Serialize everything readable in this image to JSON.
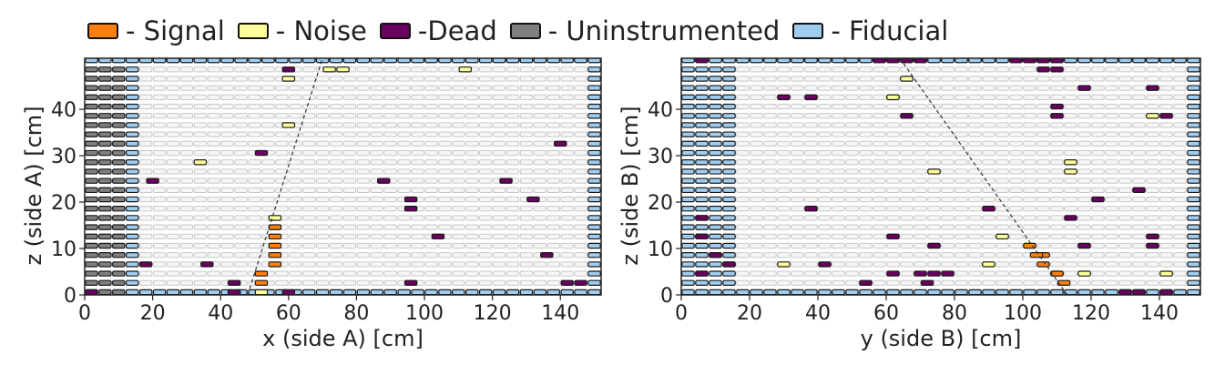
{
  "colors": {
    "signal": "#ff7f0e",
    "noise": "#ffff99",
    "dead": "#6a0060",
    "uninstrumented": "#808080",
    "fiducial": "#9fcdf0",
    "empty": "#f5f5f5"
  },
  "legend": [
    {
      "key": "signal",
      "label": "- Signal"
    },
    {
      "key": "noise",
      "label": "- Noise"
    },
    {
      "key": "dead",
      "label": "-Dead"
    },
    {
      "key": "uninstrumented",
      "label": "- Uninstrumented"
    },
    {
      "key": "fiducial",
      "label": "- Fiducial"
    }
  ],
  "chart_data": [
    {
      "type": "heatmap",
      "title": "",
      "xlabel": "x (side A) [cm]",
      "ylabel": "z (side A) [cm]",
      "xlim": [
        0,
        152
      ],
      "ylim": [
        0,
        51
      ],
      "xticks": [
        0,
        20,
        40,
        60,
        80,
        100,
        120,
        140
      ],
      "yticks": [
        0,
        10,
        20,
        30,
        40
      ],
      "cell_width_cm": 4,
      "cell_height_cm": 2,
      "uninstrumented_x_range": [
        0,
        12
      ],
      "fiducial_columns_x": [
        [
          12,
          16
        ],
        [
          148,
          152
        ]
      ],
      "fiducial_rows_z": [
        [
          0,
          1
        ],
        [
          50,
          51
        ]
      ],
      "signal_cells": [
        [
          50,
          2
        ],
        [
          50,
          4
        ],
        [
          54,
          6
        ],
        [
          54,
          8
        ],
        [
          54,
          10
        ],
        [
          54,
          12
        ],
        [
          54,
          14
        ]
      ],
      "noise_cells": [
        [
          50,
          0
        ],
        [
          54,
          16
        ],
        [
          32,
          28
        ],
        [
          58,
          36
        ],
        [
          58,
          46
        ],
        [
          70,
          48
        ],
        [
          74,
          48
        ],
        [
          110,
          48
        ]
      ],
      "dead_cells": [
        [
          0,
          0
        ],
        [
          42,
          0
        ],
        [
          58,
          0
        ],
        [
          42,
          2
        ],
        [
          94,
          2
        ],
        [
          140,
          2
        ],
        [
          144,
          2
        ],
        [
          16,
          6
        ],
        [
          34,
          6
        ],
        [
          134,
          8
        ],
        [
          102,
          12
        ],
        [
          94,
          18
        ],
        [
          94,
          20
        ],
        [
          130,
          20
        ],
        [
          18,
          24
        ],
        [
          86,
          24
        ],
        [
          122,
          24
        ],
        [
          50,
          30
        ],
        [
          138,
          32
        ],
        [
          58,
          48
        ]
      ],
      "track": {
        "x": [
          48,
          70
        ],
        "z": [
          0,
          51
        ]
      }
    },
    {
      "type": "heatmap",
      "title": "",
      "xlabel": "y (side B) [cm]",
      "ylabel": "z (side B) [cm]",
      "xlim": [
        0,
        152
      ],
      "ylim": [
        0,
        51
      ],
      "xticks": [
        0,
        20,
        40,
        60,
        80,
        100,
        120,
        140
      ],
      "yticks": [
        0,
        10,
        20,
        30,
        40
      ],
      "cell_width_cm": 4,
      "cell_height_cm": 2,
      "uninstrumented_x_range": [
        0,
        0
      ],
      "fiducial_columns_x": [
        [
          0,
          16
        ],
        [
          148,
          152
        ]
      ],
      "fiducial_rows_z": [
        [
          0,
          1
        ],
        [
          50,
          51
        ]
      ],
      "signal_cells": [
        [
          110,
          2
        ],
        [
          108,
          4
        ],
        [
          104,
          6
        ],
        [
          104,
          8
        ],
        [
          102,
          8
        ],
        [
          100,
          10
        ]
      ],
      "noise_cells": [
        [
          28,
          6
        ],
        [
          88,
          6
        ],
        [
          116,
          4
        ],
        [
          140,
          4
        ],
        [
          92,
          12
        ],
        [
          72,
          26
        ],
        [
          112,
          26
        ],
        [
          112,
          28
        ],
        [
          64,
          46
        ],
        [
          60,
          42
        ],
        [
          136,
          38
        ]
      ],
      "dead_cells": [
        [
          52,
          2
        ],
        [
          70,
          2
        ],
        [
          128,
          0
        ],
        [
          132,
          0
        ],
        [
          140,
          0
        ],
        [
          60,
          4
        ],
        [
          68,
          4
        ],
        [
          72,
          4
        ],
        [
          76,
          4
        ],
        [
          108,
          4
        ],
        [
          4,
          4
        ],
        [
          12,
          6
        ],
        [
          40,
          6
        ],
        [
          60,
          12
        ],
        [
          8,
          8
        ],
        [
          72,
          10
        ],
        [
          116,
          10
        ],
        [
          136,
          10
        ],
        [
          136,
          12
        ],
        [
          4,
          12
        ],
        [
          4,
          16
        ],
        [
          112,
          16
        ],
        [
          36,
          18
        ],
        [
          88,
          18
        ],
        [
          120,
          20
        ],
        [
          132,
          22
        ],
        [
          64,
          38
        ],
        [
          108,
          38
        ],
        [
          108,
          40
        ],
        [
          140,
          38
        ],
        [
          28,
          42
        ],
        [
          36,
          42
        ],
        [
          136,
          44
        ],
        [
          116,
          44
        ],
        [
          104,
          48
        ],
        [
          108,
          48
        ],
        [
          4,
          50
        ],
        [
          56,
          50
        ],
        [
          60,
          50
        ],
        [
          64,
          50
        ],
        [
          68,
          50
        ],
        [
          96,
          50
        ],
        [
          100,
          50
        ],
        [
          104,
          50
        ],
        [
          108,
          50
        ]
      ],
      "track": {
        "x": [
          64,
          113
        ],
        "z": [
          51,
          0
        ]
      }
    }
  ]
}
